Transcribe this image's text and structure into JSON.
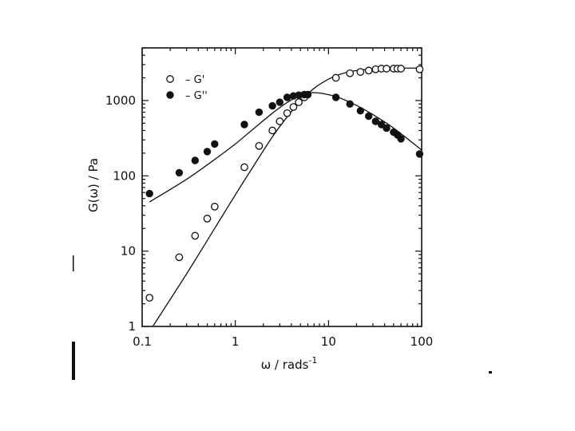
{
  "chart_data": {
    "type": "scatter",
    "xlabel": "ω / rads",
    "xlabel_superscript": "-1",
    "ylabel": "G(ω) / Pa",
    "xscale": "log",
    "yscale": "log",
    "xlim": [
      0.1,
      100
    ],
    "ylim": [
      1,
      5000
    ],
    "x_ticks": [
      "0.1",
      "1",
      "10",
      "100"
    ],
    "y_ticks": [
      "1",
      "10",
      "100",
      "1000"
    ],
    "legend": {
      "placement": "top-left",
      "entries": [
        {
          "text": "– G'",
          "marker": "open"
        },
        {
          "text": "– G''",
          "marker": "filled"
        }
      ]
    },
    "series": [
      {
        "name": "G'",
        "marker": "open",
        "x": [
          0.12,
          0.25,
          0.37,
          0.5,
          0.6,
          1.25,
          1.8,
          2.5,
          3.0,
          3.6,
          4.2,
          4.8,
          5.5,
          12,
          17,
          22,
          27,
          32,
          37,
          42,
          50,
          55,
          60,
          95
        ],
        "y": [
          2.4,
          8.3,
          16,
          27,
          39,
          130,
          250,
          400,
          530,
          680,
          820,
          950,
          1100,
          2000,
          2300,
          2400,
          2500,
          2600,
          2650,
          2650,
          2650,
          2650,
          2650,
          2600
        ]
      },
      {
        "name": "G''",
        "marker": "filled",
        "x": [
          0.12,
          0.25,
          0.37,
          0.5,
          0.6,
          1.25,
          1.8,
          2.5,
          3.0,
          3.6,
          4.2,
          4.8,
          5.5,
          6.0,
          12,
          17,
          22,
          27,
          32,
          37,
          42,
          50,
          55,
          60,
          95
        ],
        "y": [
          58,
          110,
          160,
          210,
          265,
          480,
          700,
          850,
          950,
          1100,
          1150,
          1180,
          1200,
          1200,
          1100,
          900,
          730,
          620,
          530,
          480,
          430,
          380,
          350,
          310,
          195
        ]
      }
    ],
    "fit_curves": [
      {
        "series": "G'",
        "x": [
          0.13,
          0.3,
          0.6,
          1.0,
          1.6,
          2.5,
          3.5,
          5.0,
          7.0,
          10,
          14,
          20,
          30,
          50,
          100
        ],
        "y": [
          1,
          5,
          20,
          56,
          140,
          330,
          580,
          980,
          1450,
          1920,
          2280,
          2500,
          2620,
          2680,
          2700
        ]
      },
      {
        "series": "G''",
        "x": [
          0.12,
          0.3,
          0.6,
          1.0,
          1.6,
          2.5,
          3.5,
          5.0,
          6.5,
          9,
          13,
          20,
          30,
          50,
          100
        ],
        "y": [
          45,
          90,
          165,
          265,
          430,
          680,
          920,
          1180,
          1270,
          1230,
          1090,
          860,
          650,
          430,
          220
        ]
      }
    ]
  }
}
